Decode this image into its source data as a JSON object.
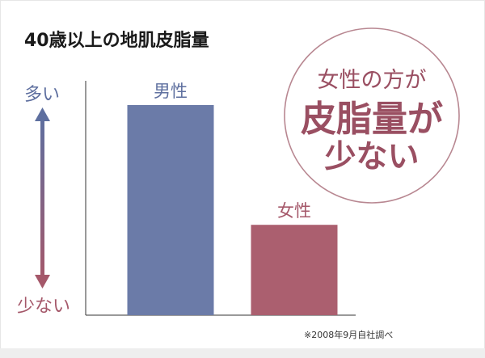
{
  "title": "40歳以上の地肌皮脂量",
  "note": "※2008年9月自社調べ",
  "scale": {
    "top_label": "多い",
    "bottom_label": "少ない"
  },
  "callout": {
    "lines": [
      "女性の方が",
      "皮脂量が",
      "少ない"
    ]
  },
  "colors": {
    "male_bar": "#6b7ba8",
    "female_bar": "#ab5f6f",
    "male_label": "#5e6f9f",
    "female_label": "#a5586a",
    "callout_border": "#b88791",
    "callout_text": "#9a4f62",
    "arrow_top": "#5e6f9f",
    "arrow_bottom": "#a5586a"
  },
  "chart_data": {
    "type": "bar",
    "categories": [
      "男性",
      "女性"
    ],
    "values": [
      100,
      43
    ],
    "ylim": [
      0,
      100
    ],
    "grid": false
  }
}
